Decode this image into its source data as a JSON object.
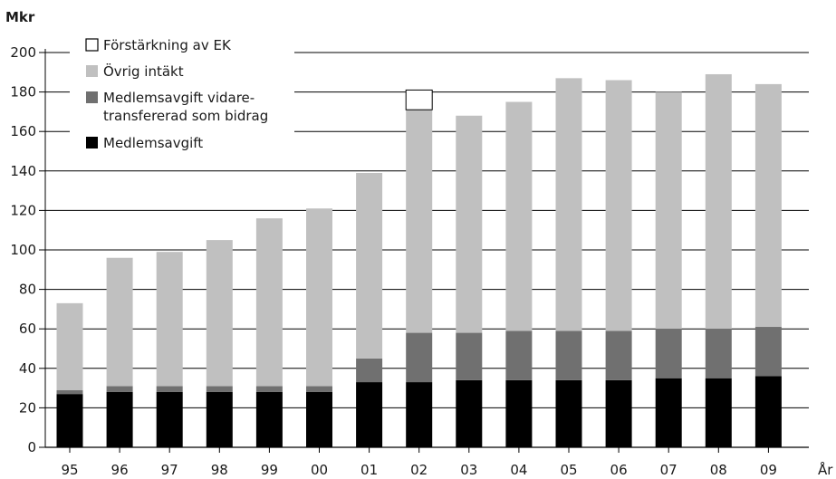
{
  "chart_data": {
    "type": "bar",
    "stacked": true,
    "ylabel": "Mkr",
    "xlabel": "År",
    "ylim": [
      0,
      200
    ],
    "y_ticks": [
      0,
      20,
      40,
      60,
      80,
      100,
      120,
      140,
      160,
      180,
      200
    ],
    "grid": "horizontal",
    "legend_position": "top-left",
    "categories": [
      "95",
      "96",
      "97",
      "98",
      "99",
      "00",
      "01",
      "02",
      "03",
      "04",
      "05",
      "06",
      "07",
      "08",
      "09"
    ],
    "series": [
      {
        "name": "Medlemsavgift",
        "color": "#000000",
        "values": [
          27,
          28,
          28,
          28,
          28,
          28,
          33,
          33,
          34,
          34,
          34,
          34,
          35,
          35,
          36
        ]
      },
      {
        "name": "Medlemsavgift vidare-transfererad som bidrag",
        "color": "#707070",
        "values": [
          2,
          3,
          3,
          3,
          3,
          3,
          12,
          25,
          24,
          25,
          25,
          25,
          25,
          25,
          25
        ]
      },
      {
        "name": "Övrig intäkt",
        "color": "#c0c0c0",
        "values": [
          44,
          65,
          68,
          74,
          85,
          90,
          94,
          113,
          110,
          116,
          128,
          127,
          120,
          129,
          123
        ]
      },
      {
        "name": "Förstärkning av EK",
        "color": "#ffffff",
        "values": [
          0,
          0,
          0,
          0,
          0,
          0,
          0,
          10,
          0,
          0,
          0,
          0,
          0,
          0,
          0
        ]
      }
    ],
    "legend": [
      {
        "lines": [
          "Förstärkning av EK"
        ],
        "color": "#ffffff"
      },
      {
        "lines": [
          "Övrig intäkt"
        ],
        "color": "#c0c0c0"
      },
      {
        "lines": [
          "Medlemsavgift vidare-",
          "transfererad som bidrag"
        ],
        "color": "#707070"
      },
      {
        "lines": [
          "Medlemsavgift"
        ],
        "color": "#000000"
      }
    ]
  }
}
